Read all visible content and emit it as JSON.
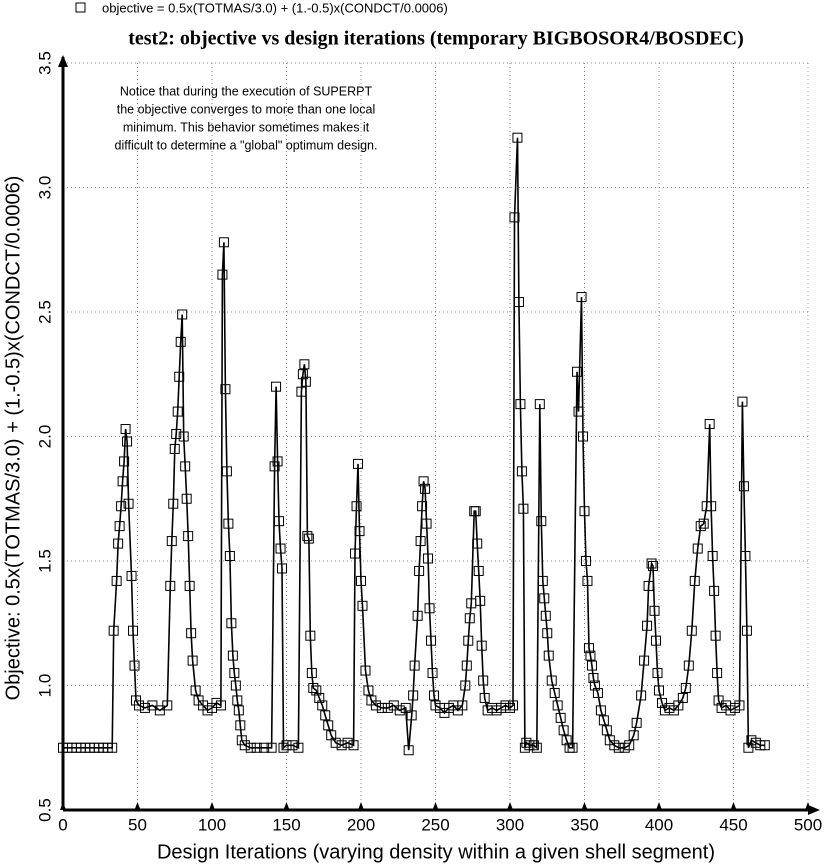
{
  "chart_data": {
    "type": "line",
    "title": "test2: objective vs design iterations (temporary BIGBOSOR4/BOSDEC)",
    "xlabel": "Design Iterations (varying density within a given shell segment)",
    "ylabel": "Objective: 0.5x(TOTMAS/3.0) + (1.-0.5)x(CONDCT/0.0006)",
    "annotation": [
      "Notice that during the execution of SUPERPT",
      "the objective converges to more than one local",
      "minimum. This behavior sometimes makes it",
      "difficult to determine a \"global\" optimum design."
    ],
    "xlim": [
      0,
      500
    ],
    "ylim": [
      0.5,
      3.5
    ],
    "xticks": [
      0,
      50,
      100,
      150,
      200,
      250,
      300,
      350,
      400,
      450,
      500
    ],
    "yticks": [
      0.5,
      {
        "value": 1,
        "label": "1.0"
      },
      1.5,
      {
        "value": 2,
        "label": "2.0"
      },
      2.5,
      {
        "value": 3,
        "label": "3.0"
      },
      3.5
    ],
    "grid": true,
    "x": [
      0,
      3,
      6,
      9,
      12,
      15,
      18,
      21,
      24,
      27,
      30,
      33,
      34,
      36,
      37,
      38,
      39,
      40,
      41,
      42,
      43,
      44,
      46,
      47,
      48,
      49,
      51,
      55,
      60,
      65,
      70,
      72,
      73,
      74,
      75,
      76,
      77,
      78,
      79,
      80,
      81,
      82,
      83,
      84,
      85,
      86,
      87,
      89,
      91,
      94,
      97,
      100,
      103,
      106,
      107,
      108,
      109,
      110,
      111,
      112,
      113,
      114,
      115,
      116,
      117,
      118,
      119,
      120,
      122,
      126,
      130,
      135,
      140,
      142,
      143,
      144,
      145,
      146,
      147,
      148,
      150,
      154,
      158,
      160,
      161,
      162,
      163,
      164,
      165,
      166,
      167,
      168,
      170,
      172,
      174,
      176,
      178,
      180,
      183,
      187,
      191,
      195,
      196,
      197,
      198,
      199,
      200,
      201,
      203,
      205,
      207,
      210,
      214,
      218,
      222,
      226,
      230,
      232,
      234,
      235,
      236,
      238,
      239,
      240,
      241,
      242,
      243,
      244,
      245,
      246,
      247,
      248,
      249,
      250,
      253,
      256,
      259,
      262,
      265,
      268,
      270,
      271,
      272,
      273,
      274,
      276,
      277,
      278,
      279,
      280,
      281,
      282,
      283,
      285,
      288,
      291,
      294,
      297,
      300,
      302,
      303,
      305,
      306,
      307,
      308,
      309,
      310,
      311,
      313,
      316,
      318,
      320,
      321,
      322,
      323,
      324,
      325,
      326,
      328,
      330,
      332,
      334,
      336,
      338,
      340,
      342,
      345,
      346,
      348,
      349,
      350,
      351,
      352,
      353,
      354,
      355,
      356,
      357,
      359,
      361,
      363,
      365,
      367,
      370,
      373,
      377,
      380,
      383,
      385,
      388,
      390,
      392,
      393,
      395,
      396,
      397,
      398,
      399,
      400,
      402,
      404,
      407,
      410,
      413,
      416,
      418,
      420,
      422,
      424,
      426,
      428,
      430,
      432,
      434,
      435,
      436,
      437,
      438,
      439,
      440,
      442,
      445,
      448,
      451,
      454,
      456,
      457,
      458,
      459,
      460,
      462,
      465,
      468,
      471
    ],
    "series": [
      {
        "name": "objective = 0.5x(TOTMAS/3.0) + (1.-0.5)x(CONDCT/0.0006)",
        "color": "#000000",
        "values": [
          0.75,
          0.75,
          0.75,
          0.75,
          0.75,
          0.75,
          0.75,
          0.75,
          0.75,
          0.75,
          0.75,
          0.75,
          1.22,
          1.42,
          1.57,
          1.64,
          1.72,
          1.82,
          1.9,
          2.03,
          1.98,
          1.73,
          1.44,
          1.22,
          1.08,
          0.94,
          0.92,
          0.91,
          0.92,
          0.9,
          0.92,
          1.4,
          1.58,
          1.73,
          1.95,
          2.01,
          2.1,
          2.24,
          2.38,
          2.49,
          2.0,
          1.88,
          1.75,
          1.6,
          1.4,
          1.21,
          1.1,
          0.98,
          0.94,
          0.92,
          0.9,
          0.91,
          0.93,
          0.92,
          2.65,
          2.78,
          2.19,
          1.86,
          1.65,
          1.52,
          1.25,
          1.12,
          1.05,
          1.0,
          0.94,
          0.9,
          0.84,
          0.78,
          0.76,
          0.75,
          0.75,
          0.75,
          0.75,
          1.88,
          2.2,
          1.9,
          1.66,
          1.55,
          1.47,
          0.75,
          0.76,
          0.76,
          0.75,
          2.18,
          2.25,
          2.29,
          2.22,
          1.6,
          1.59,
          1.2,
          1.05,
          0.99,
          0.98,
          0.95,
          0.92,
          0.88,
          0.84,
          0.8,
          0.77,
          0.76,
          0.77,
          0.76,
          1.53,
          1.72,
          1.89,
          1.62,
          1.42,
          1.32,
          1.06,
          0.98,
          0.94,
          0.92,
          0.91,
          0.91,
          0.92,
          0.9,
          0.91,
          0.74,
          0.88,
          0.96,
          1.08,
          1.28,
          1.46,
          1.58,
          1.72,
          1.82,
          1.79,
          1.65,
          1.51,
          1.31,
          1.18,
          1.05,
          0.96,
          0.92,
          0.91,
          0.89,
          0.91,
          0.92,
          0.9,
          0.92,
          1.0,
          1.08,
          1.18,
          1.27,
          1.33,
          1.7,
          1.7,
          1.57,
          1.46,
          1.34,
          1.16,
          1.02,
          0.95,
          0.9,
          0.91,
          0.9,
          0.91,
          0.92,
          0.91,
          0.92,
          2.88,
          3.2,
          2.54,
          2.13,
          1.86,
          1.71,
          0.75,
          0.77,
          0.76,
          0.76,
          0.75,
          2.13,
          1.66,
          1.42,
          1.35,
          1.28,
          1.21,
          1.12,
          1.02,
          0.97,
          0.92,
          0.87,
          0.82,
          0.78,
          0.75,
          0.75,
          2.26,
          2.1,
          2.56,
          2.0,
          1.7,
          1.5,
          1.42,
          1.15,
          1.12,
          1.08,
          1.03,
          1.0,
          0.97,
          0.9,
          0.86,
          0.82,
          0.78,
          0.76,
          0.75,
          0.75,
          0.76,
          0.8,
          0.85,
          0.96,
          1.1,
          1.24,
          1.4,
          1.49,
          1.48,
          1.3,
          1.18,
          1.05,
          0.98,
          0.93,
          0.9,
          0.91,
          0.9,
          0.92,
          0.95,
          0.99,
          1.08,
          1.22,
          1.42,
          1.55,
          1.64,
          1.65,
          1.72,
          2.05,
          1.72,
          1.52,
          1.38,
          1.2,
          1.05,
          0.94,
          0.91,
          0.92,
          0.9,
          0.91,
          0.92,
          2.14,
          1.8,
          1.52,
          1.22,
          0.75,
          0.78,
          0.77,
          0.76,
          0.76
        ]
      }
    ]
  }
}
